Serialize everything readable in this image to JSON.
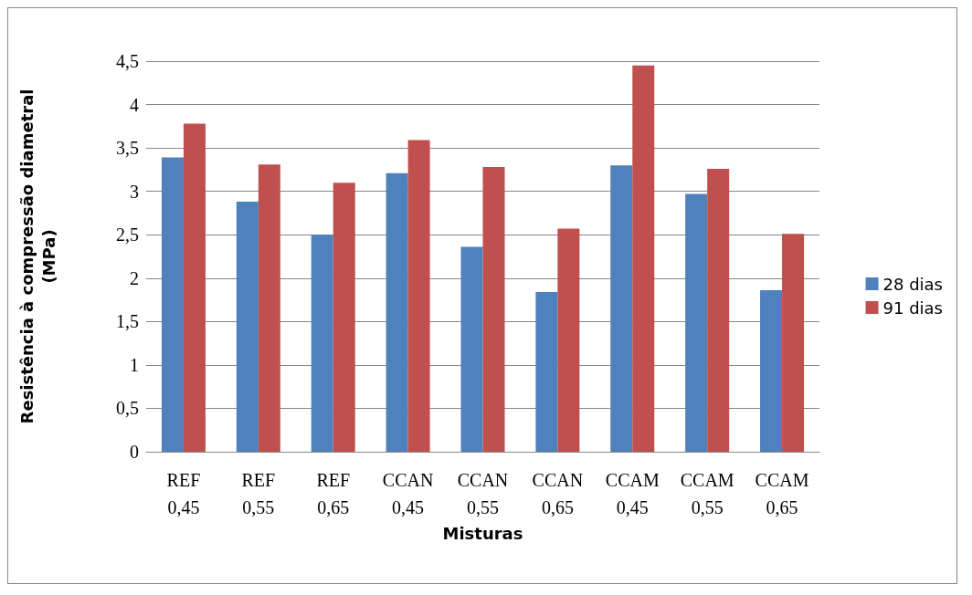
{
  "chart_data": {
    "type": "bar",
    "xlabel": "Misturas",
    "ylabel": "Resistência à compressão diametral\n(MPa)",
    "categories": [
      "REF\n0,45",
      "REF\n0,55",
      "REF\n0,65",
      "CCAN\n0,45",
      "CCAN\n0,55",
      "CCAN\n0,65",
      "CCAM\n0,45",
      "CCAM\n0,55",
      "CCAM\n0,65"
    ],
    "series": [
      {
        "name": "28 dias",
        "color": "#4f81bd",
        "values": [
          3.39,
          2.88,
          2.5,
          3.21,
          2.36,
          1.84,
          3.3,
          2.97,
          1.86
        ]
      },
      {
        "name": "91 dias",
        "color": "#c0504d",
        "values": [
          3.78,
          3.31,
          3.1,
          3.59,
          3.28,
          2.57,
          4.45,
          3.26,
          2.51
        ]
      }
    ],
    "ylim": [
      0,
      4.5
    ],
    "yticks": [
      0,
      {
        "value": 0.5,
        "label": "0,5"
      },
      1,
      {
        "value": 1.5,
        "label": "1,5"
      },
      2,
      {
        "value": 2.5,
        "label": "2,5"
      },
      3,
      {
        "value": 3.5,
        "label": "3,5"
      },
      4,
      {
        "value": 4.5,
        "label": "4,5"
      }
    ],
    "grid": "y",
    "legend": "right"
  }
}
